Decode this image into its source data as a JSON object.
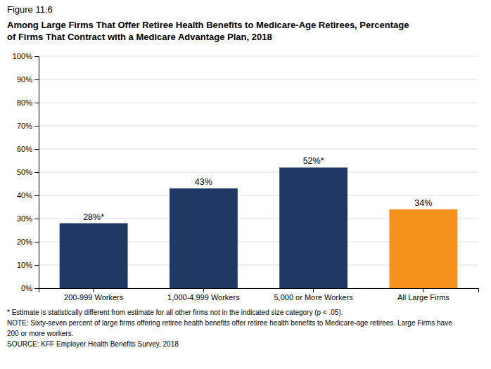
{
  "chart_data": {
    "type": "bar",
    "subtitle": "Figure 11.6",
    "title": [
      "Among Large Firms That Offer Retiree Health Benefits to Medicare-Age Retirees, Percentage",
      "of Firms That Contract with a Medicare Advantage Plan, 2018"
    ],
    "categories": [
      "200-999 Workers",
      "1,000-4,999 Workers",
      "5,000 or More Workers",
      "All Large Firms"
    ],
    "values": [
      28,
      43,
      52,
      34
    ],
    "value_labels": [
      "28%*",
      "43%",
      "52%*",
      "34%"
    ],
    "data_labels": true,
    "colors": [
      "#1f3864",
      "#1f3864",
      "#1f3864",
      "#f5921e"
    ],
    "ylim": [
      0,
      100
    ],
    "yticks": [
      {
        "value": 0,
        "label": "0%"
      },
      {
        "value": 10,
        "label": "10%"
      },
      {
        "value": 20,
        "label": "20%"
      },
      {
        "value": 30,
        "label": "30%"
      },
      {
        "value": 40,
        "label": "40%"
      },
      {
        "value": 50,
        "label": "50%"
      },
      {
        "value": 60,
        "label": "60%"
      },
      {
        "value": 70,
        "label": "70%"
      },
      {
        "value": 80,
        "label": "80%"
      },
      {
        "value": 90,
        "label": "90%"
      },
      {
        "value": 100,
        "label": "100%"
      }
    ],
    "grid": true,
    "annotations": [
      "* Estimate is statistically different from estimate for all other firms not in the indicated size category (p < .05).",
      "NOTE: Sixty-seven percent of large firms offering retiree health benefits offer retiree health benefits to Medicare-age retirees. Large Firms have",
      "200 or more workers.",
      "SOURCE: KFF Employer Health Benefits Survey, 2018"
    ]
  }
}
